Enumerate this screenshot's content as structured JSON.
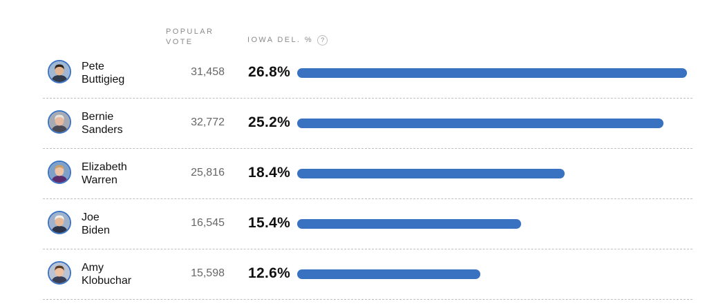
{
  "header": {
    "popular_vote_line1": "POPULAR",
    "popular_vote_line2": "VOTE",
    "iowa_del_label": "IOWA DEL. %",
    "help_glyph": "?"
  },
  "colors": {
    "bar": "#3a72c2",
    "avatar_ring": "#3b74c4"
  },
  "max_pct": 26.8,
  "candidates": [
    {
      "first": "Pete",
      "last": "Buttigieg",
      "votes": "31,458",
      "pct_label": "26.8%",
      "pct": 26.8,
      "skin": "#e2b592",
      "hair": "#2b2119",
      "shirt": "#2f3a4d",
      "bg": "#9fb7d3"
    },
    {
      "first": "Bernie",
      "last": "Sanders",
      "votes": "32,772",
      "pct_label": "25.2%",
      "pct": 25.2,
      "skin": "#e7b9a0",
      "hair": "#e6e3de",
      "shirt": "#4a4a54",
      "bg": "#a6aab3"
    },
    {
      "first": "Elizabeth",
      "last": "Warren",
      "votes": "25,816",
      "pct_label": "18.4%",
      "pct": 18.4,
      "skin": "#edc3a6",
      "hair": "#c9a06a",
      "shirt": "#5a2d6e",
      "bg": "#7fa0c9"
    },
    {
      "first": "Joe",
      "last": "Biden",
      "votes": "16,545",
      "pct_label": "15.4%",
      "pct": 15.4,
      "skin": "#e8b999",
      "hair": "#f1efea",
      "shirt": "#2b3449",
      "bg": "#9fb1cb"
    },
    {
      "first": "Amy",
      "last": "Klobuchar",
      "votes": "15,598",
      "pct_label": "12.6%",
      "pct": 12.6,
      "skin": "#ecc0a0",
      "hair": "#5c3c24",
      "shirt": "#3b3f55",
      "bg": "#b9c3d3"
    }
  ]
}
